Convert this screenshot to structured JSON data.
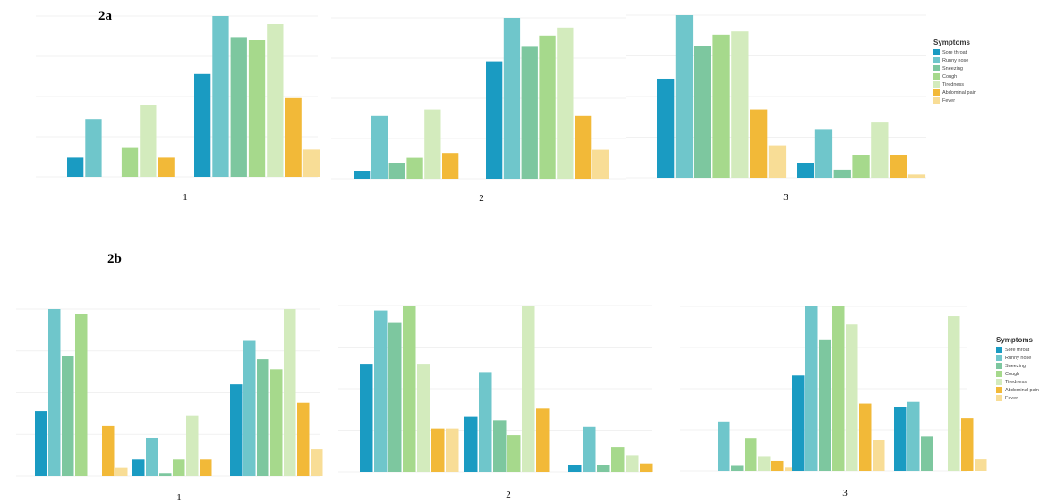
{
  "sections": [
    {
      "id": "2a",
      "title": "2a"
    },
    {
      "id": "2b",
      "title": "2b"
    }
  ],
  "legend": {
    "title": "Symptoms",
    "items": [
      {
        "label": "Sore throat",
        "color": "#1a9bc2"
      },
      {
        "label": "Runny nose",
        "color": "#6fc6cb"
      },
      {
        "label": "Sneezing",
        "color": "#7dc79f"
      },
      {
        "label": "Cough",
        "color": "#a6d98c"
      },
      {
        "label": "Tiredness",
        "color": "#d3ebbd"
      },
      {
        "label": "Abdominal pain",
        "color": "#f2b938"
      },
      {
        "label": "Fever",
        "color": "#f8dd96"
      }
    ]
  },
  "chart_data": [
    {
      "type": "bar",
      "section": "2a",
      "panel_label": "1",
      "series_names": [
        "Sore throat",
        "Runny nose",
        "Sneezing",
        "Cough",
        "Tiredness",
        "Abdominal pain",
        "Fever"
      ],
      "ylim": [
        0,
        1
      ],
      "clusters": [
        [
          0.12,
          0.36,
          null,
          0.18,
          0.45,
          0.12,
          null
        ],
        [
          0.64,
          1.0,
          0.87,
          0.85,
          0.95,
          0.49,
          0.17
        ]
      ]
    },
    {
      "type": "bar",
      "section": "2a",
      "panel_label": "2",
      "series_names": [
        "Sore throat",
        "Runny nose",
        "Sneezing",
        "Cough",
        "Tiredness",
        "Abdominal pain",
        "Fever"
      ],
      "ylim": [
        0,
        1
      ],
      "clusters": [
        [
          0.05,
          0.39,
          0.1,
          0.13,
          0.43,
          0.16,
          null
        ],
        [
          0.73,
          1.0,
          0.82,
          0.89,
          0.94,
          0.39,
          0.18
        ]
      ]
    },
    {
      "type": "bar",
      "section": "2a",
      "panel_label": "3",
      "series_names": [
        "Sore throat",
        "Runny nose",
        "Sneezing",
        "Cough",
        "Tiredness",
        "Abdominal pain",
        "Fever"
      ],
      "ylim": [
        0,
        1
      ],
      "clusters": [
        [
          0.61,
          1.0,
          0.81,
          0.88,
          0.9,
          0.42,
          0.2
        ],
        [
          0.09,
          0.3,
          0.05,
          0.14,
          0.34,
          0.14,
          0.02
        ]
      ]
    },
    {
      "type": "bar",
      "section": "2b",
      "panel_label": "1",
      "series_names": [
        "Sore throat",
        "Runny nose",
        "Sneezing",
        "Cough",
        "Tiredness",
        "Abdominal pain",
        "Fever"
      ],
      "ylim": [
        0,
        1
      ],
      "clusters": [
        [
          0.39,
          1.0,
          0.72,
          0.97,
          null,
          0.3,
          0.05
        ],
        [
          0.1,
          0.23,
          0.02,
          0.1,
          0.36,
          0.1,
          null
        ],
        [
          0.55,
          0.81,
          0.7,
          0.64,
          1.0,
          0.44,
          0.16
        ]
      ]
    },
    {
      "type": "bar",
      "section": "2b",
      "panel_label": "2",
      "series_names": [
        "Sore throat",
        "Runny nose",
        "Sneezing",
        "Cough",
        "Tiredness",
        "Abdominal pain",
        "Fever"
      ],
      "ylim": [
        0,
        1
      ],
      "clusters": [
        [
          0.65,
          0.97,
          0.9,
          1.0,
          0.65,
          0.26,
          0.26
        ],
        [
          0.33,
          0.6,
          0.31,
          0.22,
          1.0,
          0.38,
          null
        ],
        [
          0.04,
          0.27,
          0.04,
          0.15,
          0.1,
          0.05,
          null
        ]
      ]
    },
    {
      "type": "bar",
      "section": "2b",
      "panel_label": "3",
      "series_names": [
        "Sore throat",
        "Runny nose",
        "Sneezing",
        "Cough",
        "Tiredness",
        "Abdominal pain",
        "Fever"
      ],
      "ylim": [
        0,
        1
      ],
      "clusters": [
        [
          null,
          0.3,
          0.03,
          0.2,
          0.09,
          0.06,
          0.02
        ],
        [
          0.58,
          1.0,
          0.8,
          1.0,
          0.89,
          0.41,
          0.19
        ],
        [
          0.39,
          0.42,
          0.21,
          null,
          0.94,
          0.32,
          0.07
        ]
      ]
    }
  ]
}
